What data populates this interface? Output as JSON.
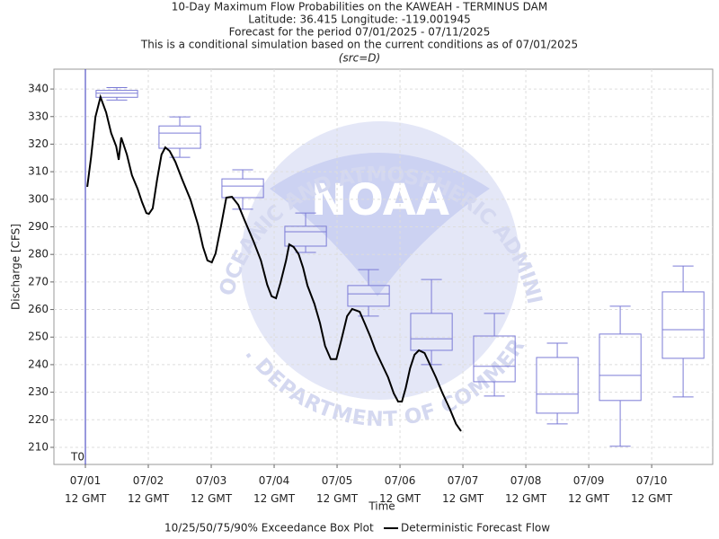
{
  "chart_data": {
    "type": "box",
    "title": "10-Day Maximum Flow Probabilities on the KAWEAH - TERMINUS DAM",
    "subtitles": [
      "Latitude: 36.415 Longitude: -119.001945",
      "Forecast for the period 07/01/2025 - 07/11/2025",
      "This is a conditional simulation based on the current conditions as of 07/01/2025",
      "(src=D)"
    ],
    "xlabel": "Time",
    "ylabel": "Discharge [CFS]",
    "xlim": [
      -0.5,
      9.97
    ],
    "ylim": [
      203.8,
      347.2
    ],
    "xticks": [
      {
        "value": 0,
        "label": "07/01 12 GMT"
      },
      {
        "value": 1,
        "label": "07/02 12 GMT"
      },
      {
        "value": 2,
        "label": "07/03 12 GMT"
      },
      {
        "value": 3,
        "label": "07/04 12 GMT"
      },
      {
        "value": 4,
        "label": "07/05 12 GMT"
      },
      {
        "value": 5,
        "label": "07/06 12 GMT"
      },
      {
        "value": 6,
        "label": "07/07 12 GMT"
      },
      {
        "value": 7,
        "label": "07/08 12 GMT"
      },
      {
        "value": 8,
        "label": "07/09 12 GMT"
      },
      {
        "value": 9,
        "label": "07/10 12 GMT"
      }
    ],
    "yticks": [
      210,
      220,
      230,
      240,
      250,
      260,
      270,
      280,
      290,
      300,
      310,
      320,
      330,
      340
    ],
    "grid": true,
    "boxes": {
      "name": "10/25/50/75/90% Exceedance Box Plot",
      "color": "#7b7bd6",
      "x": [
        0.5,
        1.5,
        2.5,
        3.5,
        4.5,
        5.5,
        6.5,
        7.5,
        8.5,
        9.5
      ],
      "low": [
        336,
        315.2,
        296.4,
        280.7,
        257.6,
        240,
        228.6,
        218.5,
        210.4,
        228.3
      ],
      "q1": [
        337,
        318.5,
        300.6,
        283,
        261.2,
        245.2,
        233.8,
        222.4,
        227,
        242.3
      ],
      "median": [
        338.5,
        324,
        304.8,
        288.2,
        265.7,
        249.4,
        239.4,
        229.3,
        236.1,
        252.7
      ],
      "q3": [
        339.5,
        326.6,
        307.4,
        290.2,
        268.7,
        258.6,
        250.4,
        242.6,
        251.1,
        266.4
      ],
      "high": [
        340.5,
        329.9,
        310.7,
        295,
        274.5,
        270.9,
        258.6,
        247.8,
        261.2,
        275.8
      ]
    },
    "series": [
      {
        "name": "Deterministic Forecast Flow",
        "type": "line",
        "color": "#000000",
        "x": [
          0.03,
          0.09,
          0.16,
          0.24,
          0.33,
          0.41,
          0.49,
          0.53,
          0.57,
          0.66,
          0.74,
          0.83,
          0.9,
          0.97,
          1.01,
          1.07,
          1.14,
          1.21,
          1.27,
          1.34,
          1.43,
          1.54,
          1.67,
          1.79,
          1.87,
          1.94,
          2.01,
          2.07,
          2.16,
          2.24,
          2.33,
          2.43,
          2.53,
          2.67,
          2.79,
          2.89,
          2.96,
          3.03,
          3.1,
          3.19,
          3.24,
          3.31,
          3.39,
          3.46,
          3.53,
          3.64,
          3.73,
          3.81,
          3.9,
          3.99,
          4.07,
          4.16,
          4.24,
          4.36,
          4.44,
          4.53,
          4.61,
          4.71,
          4.81,
          4.9,
          4.97,
          5.03,
          5.09,
          5.16,
          5.23,
          5.3,
          5.39,
          5.47,
          5.57,
          5.67,
          5.79,
          5.89,
          5.97
        ],
        "values": [
          304.5,
          315.2,
          329.9,
          337.1,
          331.5,
          324,
          319.2,
          314.3,
          322.4,
          316.2,
          308.7,
          303.8,
          299,
          295,
          294.7,
          296.7,
          307.1,
          316.2,
          318.8,
          317.5,
          313.6,
          307.1,
          299.9,
          290.8,
          282.7,
          277.8,
          277.1,
          280.4,
          290.8,
          300.6,
          300.9,
          298,
          292.4,
          284.9,
          277.8,
          269,
          264.8,
          264.1,
          269.6,
          277.8,
          283.6,
          282.7,
          280.1,
          275.2,
          268.7,
          262.1,
          255,
          246.8,
          242,
          242,
          249.1,
          257.6,
          260.2,
          259.2,
          255,
          250.1,
          245.2,
          240.3,
          235.4,
          229.6,
          226.6,
          226.6,
          231.5,
          238.7,
          243.6,
          245.2,
          244.2,
          240.3,
          235.4,
          229.9,
          224,
          218.5,
          215.9
        ]
      }
    ],
    "annotation": {
      "text": "T0",
      "x": 0,
      "color": "#3333bb"
    }
  },
  "watermark": {
    "logo": "NOAA",
    "ring_top": "NATIONAL OCEANIC AND ATMOSPHERIC ADMINISTRATION",
    "ring_bottom": "U.S. DEPARTMENT OF COMMERCE"
  }
}
